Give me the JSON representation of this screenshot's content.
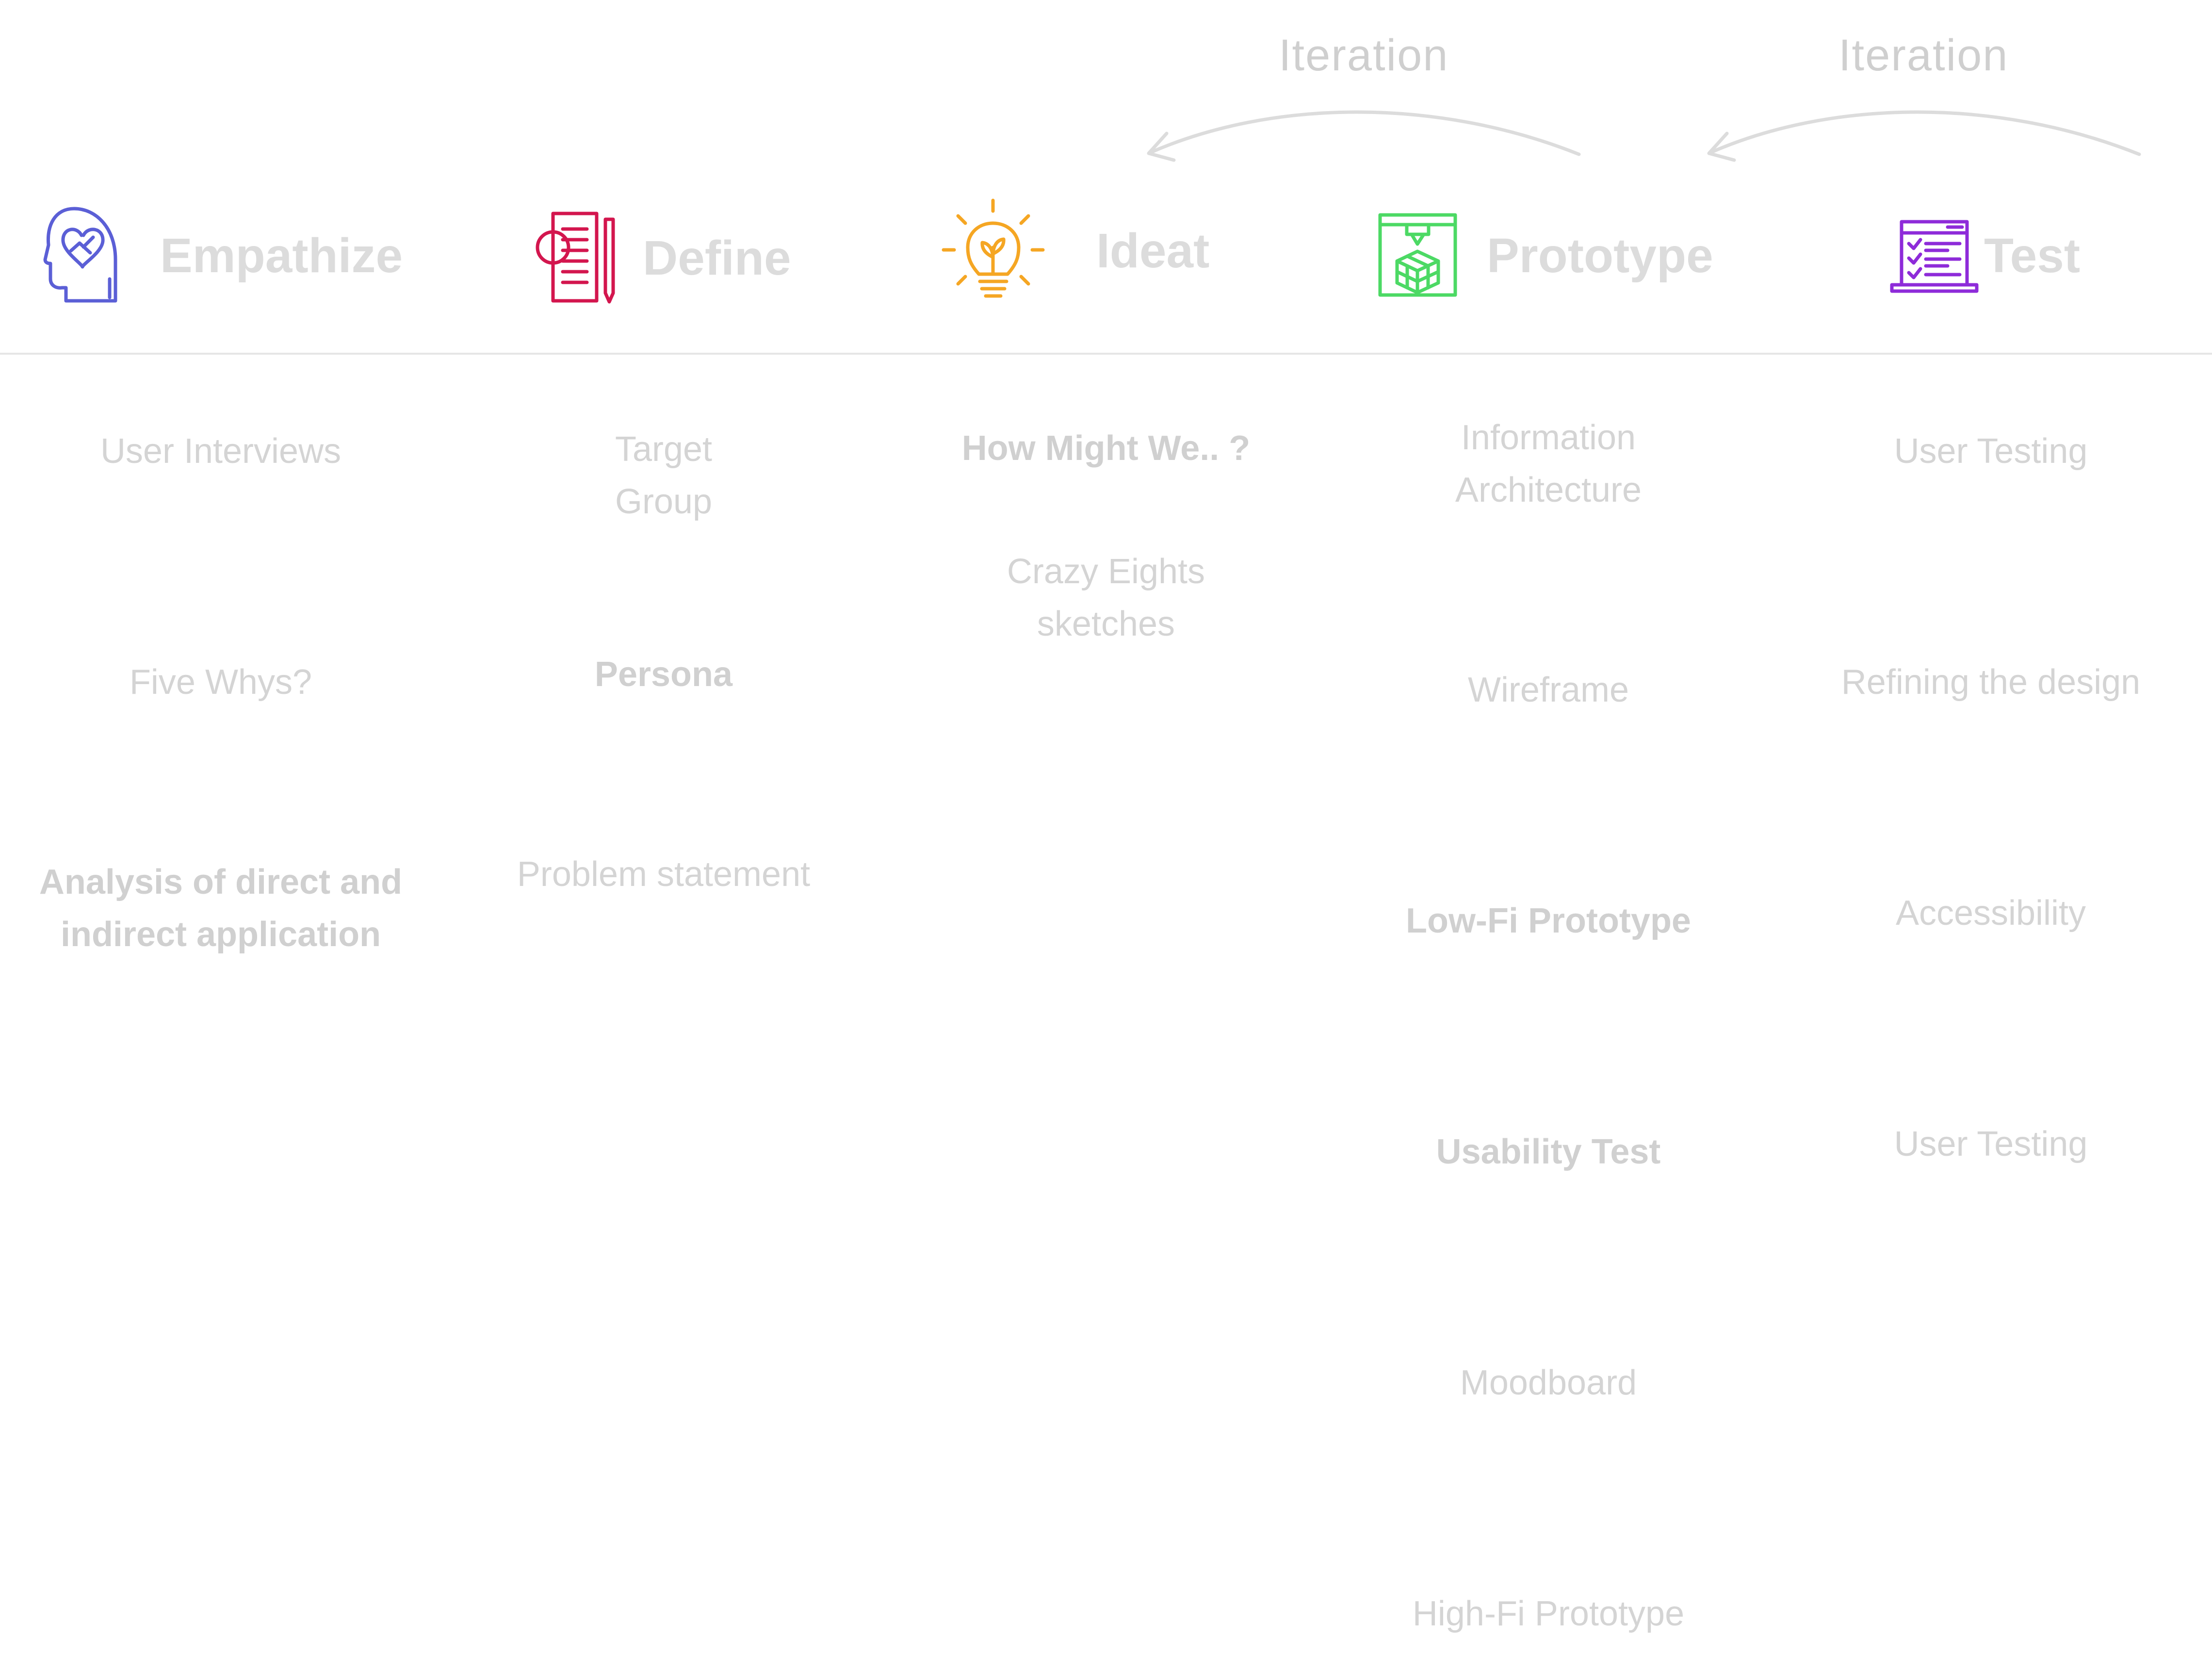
{
  "iterations": [
    {
      "label": "Iteration"
    },
    {
      "label": "Iteration"
    }
  ],
  "colors": {
    "empathize": "#5b5fd6",
    "define": "#d3164e",
    "ideat": "#f5a623",
    "prototype": "#4cd964",
    "test": "#8e2bd9",
    "muted_text": "#d4d4d4",
    "arrow": "#dcdcdc"
  },
  "phases": [
    {
      "title": "Empathize",
      "icon": "head-heart-handshake-icon",
      "items": [
        {
          "text": "User Interviews",
          "bold": false
        },
        {
          "text": "Five Whys?",
          "bold": false
        },
        {
          "text": "Analysis of direct and\nindirect application",
          "bold": true
        }
      ]
    },
    {
      "title": "Define",
      "icon": "document-magnifier-pencil-icon",
      "items": [
        {
          "text": "Target\nGroup",
          "bold": false
        },
        {
          "text": "Persona",
          "bold": true
        },
        {
          "text": "Problem statement",
          "bold": false
        }
      ]
    },
    {
      "title": "Ideat",
      "icon": "lightbulb-sprout-icon",
      "items": [
        {
          "text": "How Might We.. ?",
          "bold": true
        },
        {
          "text": "Crazy Eights\nsketches",
          "bold": false
        }
      ]
    },
    {
      "title": "Prototype",
      "icon": "3d-printer-cube-icon",
      "items": [
        {
          "text": "Information\n Architecture",
          "bold": false
        },
        {
          "text": "Wireframe",
          "bold": false
        },
        {
          "text": "Low-Fi Prototype",
          "bold": true
        },
        {
          "text": "Usability Test",
          "bold": true
        },
        {
          "text": "Moodboard",
          "bold": false
        },
        {
          "text": "High-Fi Prototype",
          "bold": false
        }
      ]
    },
    {
      "title": "Test",
      "icon": "laptop-checklist-icon",
      "items": [
        {
          "text": "User Testing",
          "bold": false
        },
        {
          "text": "Refining the design",
          "bold": false
        },
        {
          "text": "Accessibility",
          "bold": false
        },
        {
          "text": "User Testing",
          "bold": false
        }
      ]
    }
  ]
}
